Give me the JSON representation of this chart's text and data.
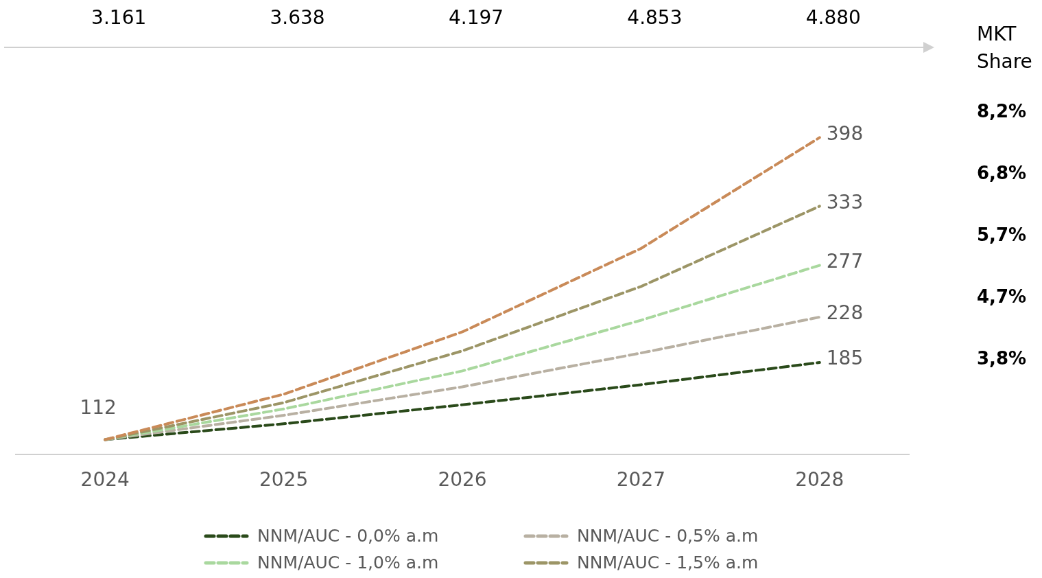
{
  "chart_data": {
    "type": "line",
    "categories": [
      "2024",
      "2025",
      "2026",
      "2027",
      "2028"
    ],
    "series": [
      {
        "name": "NNM/AUC - 0,0% a.m",
        "color": "#2a4a1a",
        "values": [
          112,
          127,
          145,
          164,
          185
        ],
        "value_labels": [
          "112",
          null,
          null,
          null,
          "185"
        ]
      },
      {
        "name": "NNM/AUC - 0,5% a.m",
        "color": "#b8b0a2",
        "values": [
          112,
          135,
          162,
          194,
          228
        ],
        "value_labels": [
          null,
          null,
          null,
          null,
          "228"
        ]
      },
      {
        "name": "NNM/AUC - 1,0% a.m",
        "color": "#a9d89e",
        "values": [
          112,
          141,
          177,
          225,
          277
        ],
        "value_labels": [
          null,
          null,
          null,
          null,
          "277"
        ]
      },
      {
        "name": "NNM/AUC - 1,5% a.m",
        "color": "#9c9566",
        "values": [
          112,
          147,
          196,
          257,
          333
        ],
        "value_labels": [
          null,
          null,
          null,
          null,
          "333"
        ]
      },
      {
        "color": "#c98a58",
        "values": [
          112,
          155,
          214,
          293,
          398
        ],
        "value_labels": [
          null,
          null,
          null,
          null,
          "398"
        ]
      }
    ],
    "annotations": [
      "3.161",
      "3.638",
      "4.197",
      "4.853",
      "4.880",
      "MKT Share",
      "8,2%",
      "6,8%",
      "5,7%",
      "4,7%",
      "3,8%"
    ],
    "legend": "bottom",
    "line_style": "dashed",
    "marker": "none",
    "tick_labels": "x"
  }
}
